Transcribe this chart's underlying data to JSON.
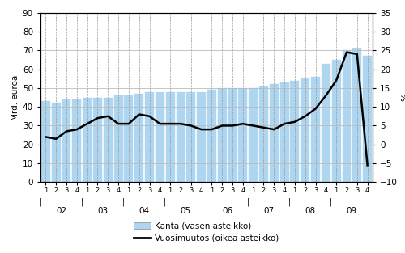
{
  "bar_values": [
    43,
    42,
    44,
    44,
    45,
    45,
    45,
    46,
    46,
    47,
    48,
    48,
    48,
    48,
    48,
    48,
    49,
    50,
    50,
    50,
    50,
    51,
    52,
    53,
    54,
    55,
    56,
    63,
    65,
    70,
    71,
    67
  ],
  "line_values_pct": [
    2.0,
    1.5,
    3.5,
    4.0,
    5.5,
    7.0,
    7.5,
    5.5,
    5.5,
    8.0,
    7.5,
    5.5,
    5.5,
    5.5,
    5.0,
    4.0,
    4.0,
    5.0,
    5.0,
    5.5,
    5.0,
    4.5,
    4.0,
    5.5,
    6.0,
    7.5,
    9.5,
    13.0,
    17.0,
    24.5,
    24.0,
    -5.5
  ],
  "bar_color": "#aed6f1",
  "bar_edgecolor": "#aed6f1",
  "line_color": "#000000",
  "left_ylabel": "Mrd. euroa",
  "right_ylabel": "%",
  "left_ylim": [
    0,
    90
  ],
  "right_ylim": [
    -10,
    35
  ],
  "left_yticks": [
    0,
    10,
    20,
    30,
    40,
    50,
    60,
    70,
    80,
    90
  ],
  "right_yticks": [
    -10,
    -5,
    0,
    5,
    10,
    15,
    20,
    25,
    30,
    35
  ],
  "legend_bar_label": "Kanta (vasen asteikko)",
  "legend_line_label": "Vuosimuutos (oikea asteikko)",
  "quarters": [
    "1",
    "2",
    "3",
    "4",
    "1",
    "2",
    "3",
    "4",
    "1",
    "2",
    "3",
    "4",
    "1",
    "2",
    "3",
    "4",
    "1",
    "2",
    "3",
    "4",
    "1",
    "2",
    "3",
    "4",
    "1",
    "2",
    "3",
    "4",
    "1",
    "2",
    "3",
    "4"
  ],
  "year_labels": [
    "02",
    "03",
    "04",
    "05",
    "06",
    "07",
    "08",
    "09"
  ],
  "year_mid_positions": [
    1.5,
    5.5,
    9.5,
    13.5,
    17.5,
    21.5,
    25.5,
    29.5
  ],
  "year_boundary_positions": [
    -0.5,
    3.5,
    7.5,
    11.5,
    15.5,
    19.5,
    23.5,
    27.5,
    31.5
  ],
  "background_color": "#ffffff",
  "grid_color": "#999999",
  "hgrid_color": "#000000"
}
